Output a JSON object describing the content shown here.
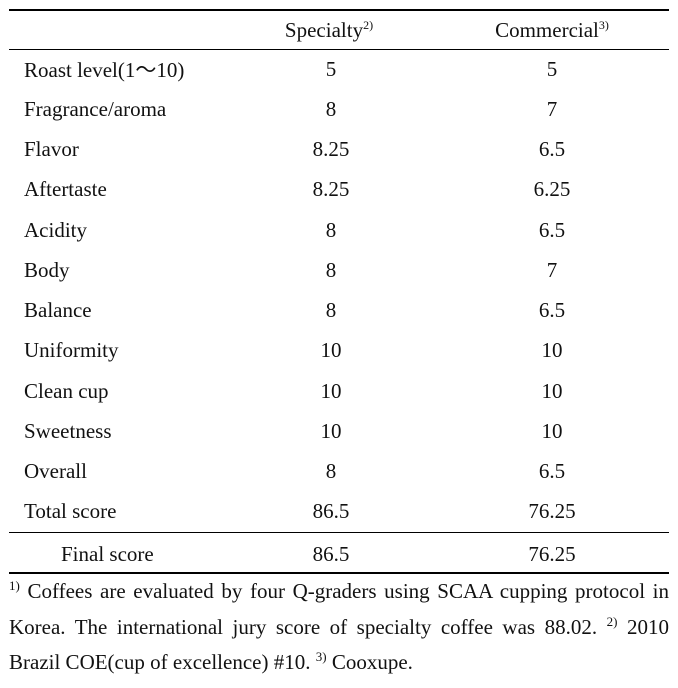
{
  "table": {
    "headers": {
      "attribute": "",
      "specialty": "Specialty",
      "specialty_note": "2)",
      "commercial": "Commercial",
      "commercial_note": "3)"
    },
    "rows": [
      {
        "attribute": "Roast level(1～10)",
        "specialty": "5",
        "commercial": "5"
      },
      {
        "attribute": "Fragrance/aroma",
        "specialty": "8",
        "commercial": "7"
      },
      {
        "attribute": "Flavor",
        "specialty": "8.25",
        "commercial": "6.5"
      },
      {
        "attribute": "Aftertaste",
        "specialty": "8.25",
        "commercial": "6.25"
      },
      {
        "attribute": "Acidity",
        "specialty": "8",
        "commercial": "6.5"
      },
      {
        "attribute": "Body",
        "specialty": "8",
        "commercial": "7"
      },
      {
        "attribute": "Balance",
        "specialty": "8",
        "commercial": "6.5"
      },
      {
        "attribute": "Uniformity",
        "specialty": "10",
        "commercial": "10"
      },
      {
        "attribute": "Clean cup",
        "specialty": "10",
        "commercial": "10"
      },
      {
        "attribute": "Sweetness",
        "specialty": "10",
        "commercial": "10"
      },
      {
        "attribute": "Overall",
        "specialty": "8",
        "commercial": "6.5"
      },
      {
        "attribute": "Total score",
        "specialty": "86.5",
        "commercial": "76.25"
      }
    ],
    "final_row": {
      "attribute": "Final score",
      "specialty": "86.5",
      "commercial": "76.25"
    }
  },
  "footnote": {
    "note1_marker": "1)",
    "note1_text": " Coffees are evaluated by four Q-graders using SCAA cupping protocol in Korea. The international jury score of specialty coffee was 88.02. ",
    "note2_marker": "2)",
    "note2_text": " 2010 Brazil COE(cup of excellence) #10. ",
    "note3_marker": "3)",
    "note3_text": " Cooxupe."
  }
}
